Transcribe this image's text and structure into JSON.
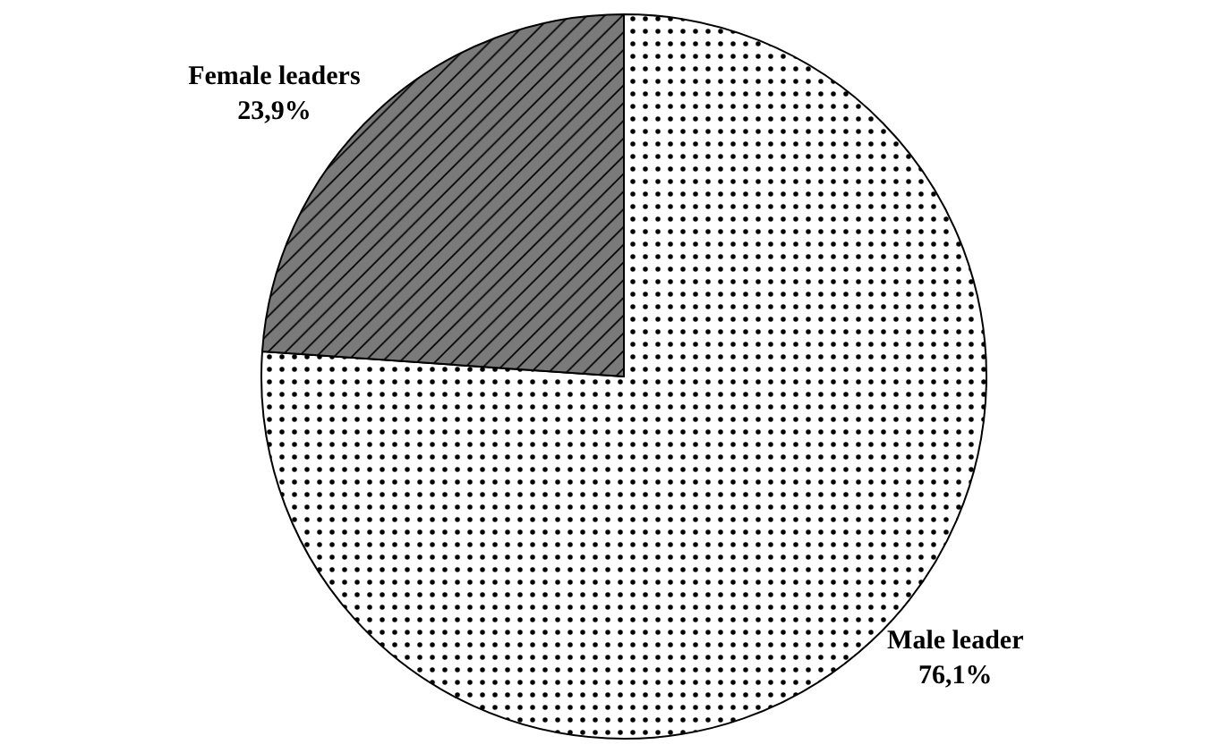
{
  "chart_data": {
    "type": "pie",
    "categories": [
      "Male leader",
      "Female leaders"
    ],
    "values": [
      76.1,
      23.9
    ],
    "value_labels": [
      "76,1%",
      "23,9%"
    ],
    "colors": [
      "#ffffff",
      "#7a7a7a"
    ],
    "legend": false
  }
}
